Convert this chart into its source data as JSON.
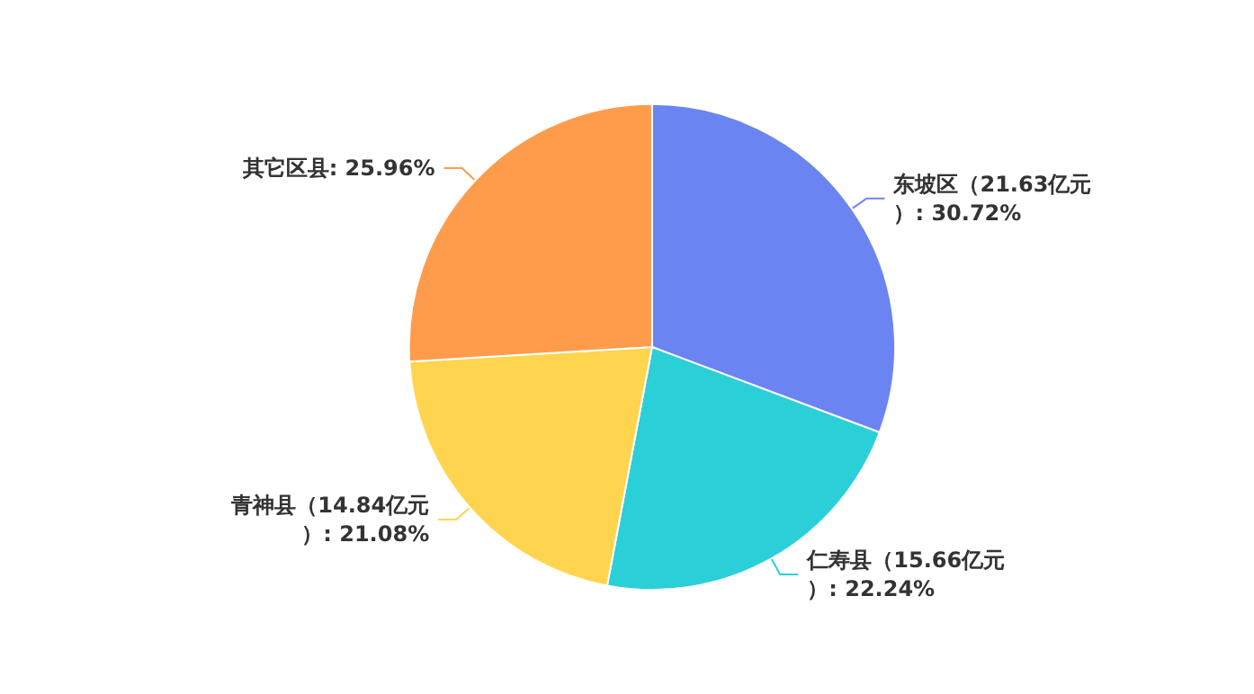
{
  "chart_data": {
    "type": "pie",
    "categories": [
      "东坡区（21.63亿元）",
      "仁寿县（15.66亿元）",
      "青神县（14.84亿元）",
      "其它区县"
    ],
    "values": [
      30.72,
      22.24,
      21.08,
      25.96
    ],
    "value_labels": [
      "30.72%",
      "22.24%",
      "21.08%",
      "25.96%"
    ],
    "colors": [
      "#6a84f2",
      "#2acfd8",
      "#ffd44f",
      "#ff9c4c"
    ],
    "legend": false
  }
}
